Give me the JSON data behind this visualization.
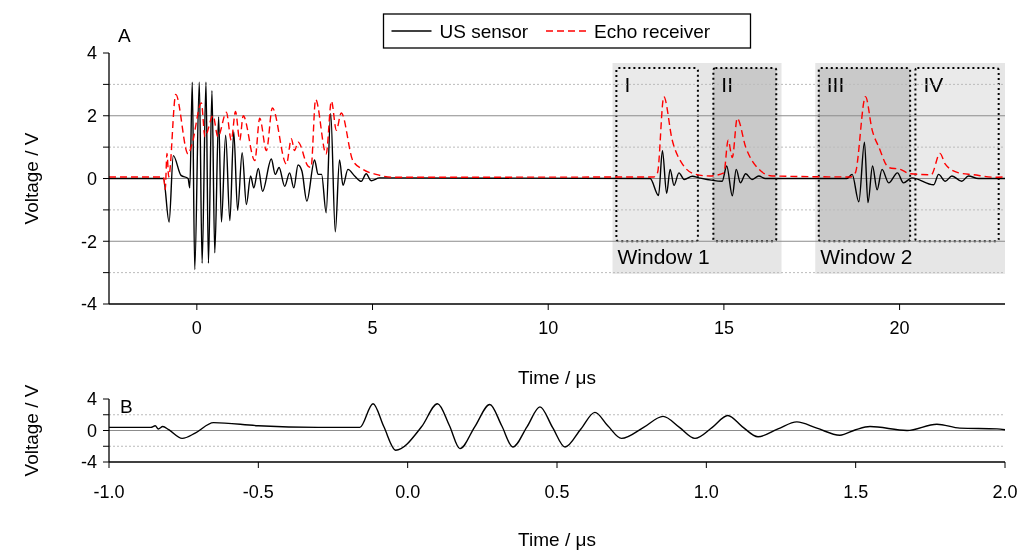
{
  "chart_data": [
    {
      "type": "line",
      "title": "A",
      "xlabel": "Time / μs",
      "ylabel": "Voltage / V",
      "xlim": [
        -2.5,
        23
      ],
      "ylim": [
        -4,
        4
      ],
      "xticks": [
        0,
        5,
        10,
        15,
        20
      ],
      "yticks": [
        -4,
        {
          "value": -3,
          "label": null
        },
        -2,
        {
          "value": -1,
          "label": null
        },
        0,
        {
          "value": 1,
          "label": null
        },
        2,
        {
          "value": 3,
          "label": null
        },
        4
      ],
      "grid": "y",
      "legend": "top",
      "marker": "none",
      "bands": [
        {
          "axis": "x",
          "from": 11.83,
          "to": 16.64,
          "label": "Window 1",
          "color": "#e6e6e6"
        },
        {
          "axis": "x",
          "from": 17.6,
          "to": 23,
          "label": "Window 2",
          "color": "#e6e6e6"
        },
        {
          "axis": "x",
          "from": 11.94,
          "to": 14.26,
          "label": "I",
          "color": "#eaeaea"
        },
        {
          "axis": "x",
          "from": 14.7,
          "to": 16.49,
          "label": "II",
          "color": "#c9c9c9"
        },
        {
          "axis": "x",
          "from": 17.7,
          "to": 20.3,
          "label": "III",
          "color": "#c9c9c9"
        },
        {
          "axis": "x",
          "from": 20.45,
          "to": 22.82,
          "label": "IV",
          "color": "#eaeaea"
        }
      ],
      "series": [
        {
          "name": "US sensor",
          "color": "#000000",
          "line_style": "solid",
          "x": [
            -2.5,
            -0.95,
            -0.79,
            -0.67,
            -0.45,
            -0.25,
            -0.2,
            -0.13,
            -0.06,
            0.07,
            0.15,
            0.26,
            0.33,
            0.43,
            0.51,
            0.62,
            0.7,
            0.82,
            0.94,
            1.05,
            1.16,
            1.29,
            1.41,
            1.53,
            1.62,
            1.75,
            1.87,
            2.12,
            2.23,
            2.34,
            2.5,
            2.64,
            2.76,
            2.88,
            2.99,
            3.13,
            3.35,
            3.45,
            3.55,
            3.68,
            3.81,
            3.94,
            4.06,
            4.16,
            4.3,
            4.49,
            4.68,
            4.82,
            4.96,
            5.2,
            12.9,
            13.14,
            13.25,
            13.37,
            13.47,
            13.58,
            13.72,
            13.87,
            14.1,
            14.29,
            14.95,
            15.08,
            15.24,
            15.35,
            15.47,
            15.62,
            15.8,
            15.99,
            16.18,
            18.5,
            18.65,
            18.84,
            19.0,
            19.1,
            19.23,
            19.36,
            19.5,
            19.69,
            19.94,
            20.11,
            20.35,
            20.97,
            21.11,
            21.3,
            21.49,
            21.77,
            21.96,
            22.24,
            23
          ],
          "values": [
            0,
            0,
            -1.39,
            0.73,
            0.1,
            0,
            -0.3,
            3.07,
            -2.9,
            3.07,
            -2.7,
            3.07,
            -2.7,
            2.8,
            -2.37,
            1.96,
            -1.39,
            1.38,
            -1.34,
            1.49,
            -1.01,
            0.82,
            -0.83,
            0.08,
            -0.3,
            0.32,
            -0.41,
            0.62,
            0.13,
            0.35,
            -0.25,
            0.18,
            -0.3,
            0.43,
            0.24,
            -0.72,
            0.59,
            0.13,
            0.13,
            -1.09,
            2.07,
            -1.7,
            0.59,
            -0.22,
            0.29,
            0.08,
            -0.09,
            0.15,
            -0.07,
            0.02,
            0,
            -0.54,
            0.89,
            -0.47,
            0.29,
            -0.22,
            0.18,
            -0.03,
            0.07,
            0.02,
            -0.09,
            0.4,
            -0.55,
            0.29,
            -0.14,
            0.15,
            -0.03,
            0.08,
            0,
            0,
            0.13,
            -0.74,
            1.16,
            -0.77,
            0.4,
            -0.36,
            0.29,
            -0.14,
            0.18,
            -0.14,
            0.02,
            -0.2,
            0.13,
            -0.09,
            0.08,
            -0.09,
            0.08,
            0,
            0
          ]
        },
        {
          "name": "Echo receiver",
          "color": "#ff0000",
          "line_style": "dashed",
          "x": [
            -2.5,
            -0.95,
            -0.9,
            -0.85,
            -0.8,
            -0.6,
            -0.25,
            -0.13,
            0.13,
            0.23,
            0.46,
            0.6,
            0.84,
            0.98,
            1.1,
            1.22,
            1.32,
            1.65,
            1.79,
            1.98,
            2.15,
            2.55,
            2.69,
            2.78,
            2.88,
            3.16,
            3.25,
            3.38,
            3.68,
            3.83,
            3.97,
            4.11,
            4.44,
            4.73,
            5.1,
            5.58,
            13.0,
            13.11,
            13.29,
            13.53,
            13.82,
            14.2,
            14.6,
            15.0,
            15.12,
            15.24,
            15.38,
            15.62,
            16.0,
            16.37,
            18.6,
            18.74,
            19.03,
            19.22,
            19.41,
            19.69,
            20.02,
            20.3,
            20.9,
            21.15,
            21.3,
            21.68,
            22.1,
            22.72,
            23
          ],
          "values": [
            0.05,
            0.05,
            -0.35,
            0.8,
            0.05,
            2.68,
            0.78,
            1.13,
            2.41,
            1.33,
            2.0,
            1.33,
            2.11,
            1.22,
            2.14,
            1.22,
            2.0,
            0.57,
            1.92,
            0.89,
            2.25,
            0.46,
            1.27,
            0.89,
            1.16,
            0.4,
            0.35,
            2.52,
            0.78,
            2.47,
            1.54,
            2.09,
            0.57,
            0.29,
            0.13,
            0.04,
            0.05,
            0.18,
            2.61,
            1.22,
            0.46,
            0.13,
            0.08,
            0.18,
            1.22,
            0.67,
            1.92,
            1.0,
            0.29,
            0.08,
            0.05,
            0.18,
            2.61,
            1.54,
            1.0,
            0.35,
            0.29,
            0.15,
            0.12,
            0.8,
            0.46,
            0.18,
            0.12,
            0.04,
            0.05
          ]
        }
      ]
    },
    {
      "type": "line",
      "title": "B",
      "xlabel": "Time / μs",
      "ylabel": "Voltage / V",
      "xlim": [
        -1,
        2
      ],
      "ylim": [
        -4,
        4
      ],
      "xticks": [
        {
          "value": -1,
          "label": "-1.0"
        },
        {
          "value": -0.5,
          "label": "-0.5"
        },
        {
          "value": 0,
          "label": "0.0"
        },
        {
          "value": 0.5,
          "label": "0.5"
        },
        {
          "value": 1,
          "label": "1.0"
        },
        {
          "value": 1.5,
          "label": "1.5"
        },
        {
          "value": 2,
          "label": "2.0"
        }
      ],
      "yticks": [
        -4,
        {
          "value": -2,
          "label": null
        },
        0,
        {
          "value": 2,
          "label": null
        },
        4
      ],
      "grid": "y",
      "marker": "none",
      "series": [
        {
          "color": "#000000",
          "line_style": "solid",
          "x": [
            -1,
            -0.86,
            -0.845,
            -0.835,
            -0.82,
            -0.8,
            -0.755,
            -0.71,
            -0.65,
            -0.5,
            -0.3,
            -0.16,
            -0.116,
            -0.08,
            -0.04,
            0.047,
            0.1,
            0.14,
            0.175,
            0.225,
            0.275,
            0.315,
            0.352,
            0.4,
            0.443,
            0.485,
            0.527,
            0.58,
            0.627,
            0.67,
            0.716,
            0.79,
            0.855,
            0.91,
            0.962,
            1.02,
            1.072,
            1.12,
            1.173,
            1.24,
            1.303,
            1.37,
            1.447,
            1.5,
            1.548,
            1.672,
            1.772,
            1.849,
            1.973,
            2
          ],
          "values": [
            0.4,
            0.4,
            0.6,
            0.2,
            0.5,
            0.1,
            -1.0,
            -0.3,
            1.0,
            0.6,
            0.4,
            0.4,
            3.4,
            0.5,
            -2.5,
            0.5,
            3.4,
            0.6,
            -2.3,
            0.5,
            3.3,
            0.6,
            -2.1,
            0.5,
            3.0,
            0.4,
            -2.1,
            0.2,
            2.3,
            0.6,
            -1.0,
            0.4,
            1.8,
            0.4,
            -1.0,
            0.4,
            1.9,
            0.5,
            -0.8,
            0.2,
            1.1,
            0.3,
            -0.6,
            0.1,
            0.5,
            0.0,
            0.8,
            0.3,
            0.2,
            0.1
          ]
        }
      ]
    }
  ]
}
